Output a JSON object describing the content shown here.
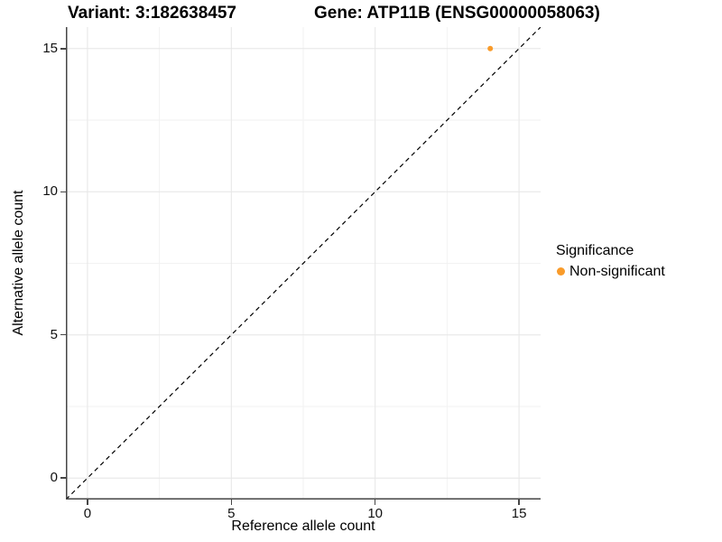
{
  "titles": {
    "variant": "Variant: 3:182638457",
    "gene": "Gene: ATP11B (ENSG00000058063)"
  },
  "chart_data": {
    "type": "scatter",
    "title_left": "Variant: 3:182638457",
    "title_right": "Gene: ATP11B (ENSG00000058063)",
    "xlabel": "Reference allele count",
    "ylabel": "Alternative allele count",
    "xlim": [
      -0.75,
      15.75
    ],
    "ylim": [
      -0.75,
      15.75
    ],
    "x_major_ticks": [
      0,
      5,
      10,
      15
    ],
    "y_major_ticks": [
      0,
      5,
      10,
      15
    ],
    "x_minor_ticks": [
      2.5,
      7.5,
      12.5
    ],
    "y_minor_ticks": [
      2.5,
      7.5,
      12.5
    ],
    "grid": "major+minor",
    "identity_line": {
      "type": "dashed",
      "equation": "y = x",
      "color": "#000000"
    },
    "series": [
      {
        "name": "Non-significant",
        "color": "#F99B2A",
        "points": [
          {
            "x": 14,
            "y": 15
          }
        ],
        "point_radius": 3
      }
    ],
    "legend": {
      "title": "Significance",
      "position": "right",
      "items": [
        {
          "label": "Non-significant",
          "color": "#F99B2A"
        }
      ]
    }
  },
  "colors": {
    "background": "#ffffff",
    "axis_line": "#464646",
    "grid_major": "#e6e6e6",
    "grid_minor": "#f2f2f2",
    "tick_text": "#111111",
    "point_orange": "#F99B2A"
  }
}
